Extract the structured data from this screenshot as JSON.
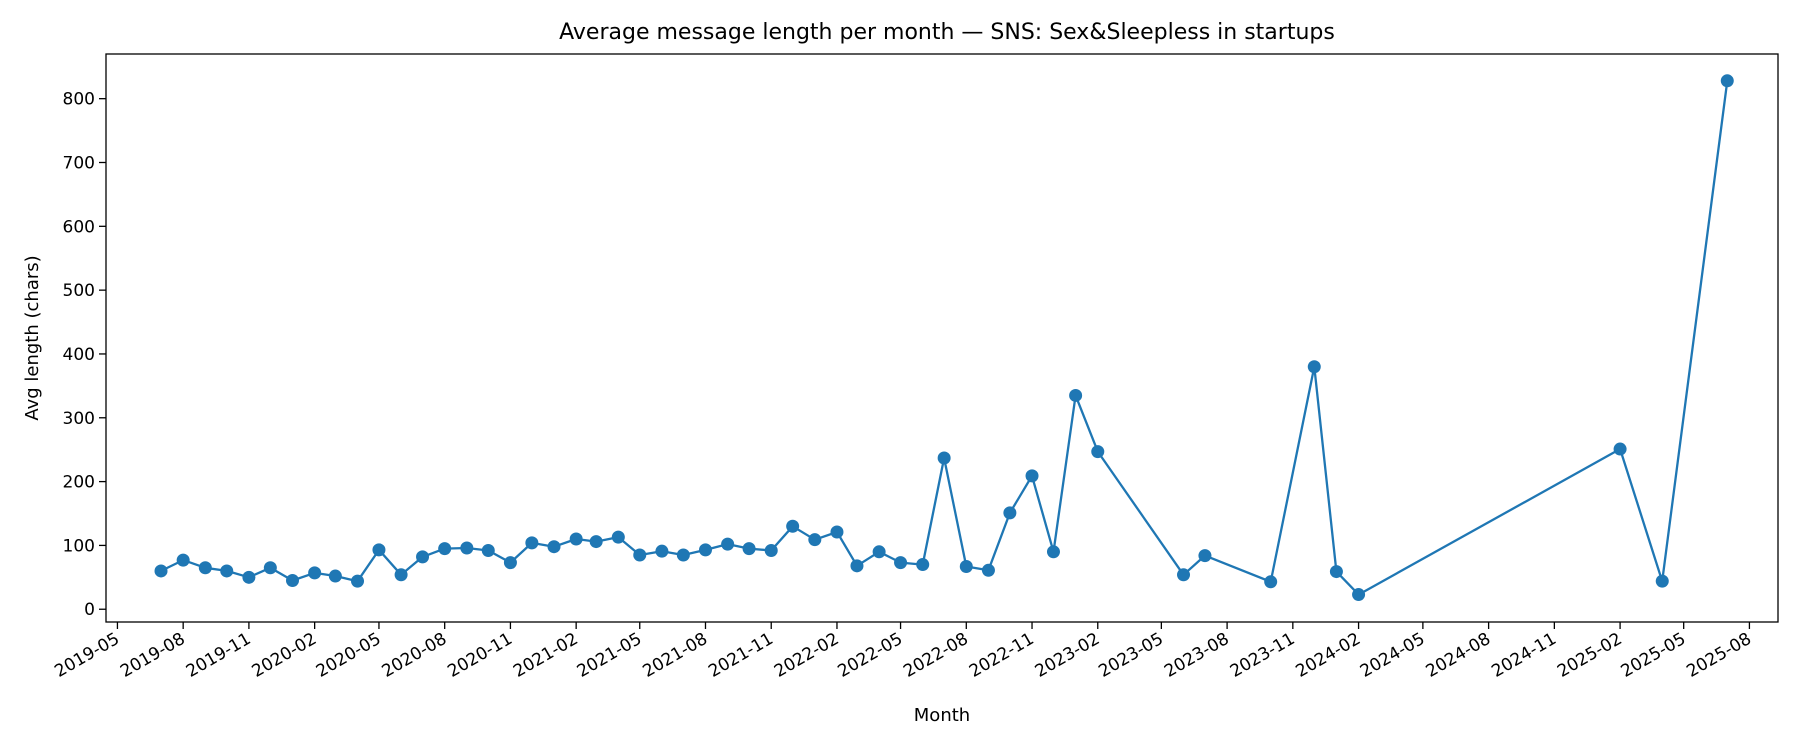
{
  "chart_data": {
    "type": "line",
    "title": "Average message length per month — SNS: Sex&Sleepless in startups",
    "xlabel": "Month",
    "ylabel": "Avg length (chars)",
    "x_axis": "date",
    "xlim": [
      "2019-04-15",
      "2025-09-10"
    ],
    "ylim": [
      -20,
      870
    ],
    "x_ticks": [
      "2019-05",
      "2019-08",
      "2019-11",
      "2020-02",
      "2020-05",
      "2020-08",
      "2020-11",
      "2021-02",
      "2021-05",
      "2021-08",
      "2021-11",
      "2022-02",
      "2022-05",
      "2022-08",
      "2022-11",
      "2023-02",
      "2023-05",
      "2023-08",
      "2023-11",
      "2024-02",
      "2024-05",
      "2024-08",
      "2024-11",
      "2025-02",
      "2025-05",
      "2025-08"
    ],
    "y_ticks": [
      0,
      100,
      200,
      300,
      400,
      500,
      600,
      700,
      800
    ],
    "grid": false,
    "color": "#1f77b4",
    "series": [
      {
        "name": "",
        "points": [
          [
            "2019-07",
            60
          ],
          [
            "2019-08",
            77
          ],
          [
            "2019-09",
            65
          ],
          [
            "2019-10",
            60
          ],
          [
            "2019-11",
            50
          ],
          [
            "2019-12",
            65
          ],
          [
            "2020-01",
            45
          ],
          [
            "2020-02",
            57
          ],
          [
            "2020-03",
            52
          ],
          [
            "2020-04",
            44
          ],
          [
            "2020-05",
            93
          ],
          [
            "2020-06",
            54
          ],
          [
            "2020-07",
            82
          ],
          [
            "2020-08",
            95
          ],
          [
            "2020-09",
            96
          ],
          [
            "2020-10",
            92
          ],
          [
            "2020-11",
            73
          ],
          [
            "2020-12",
            104
          ],
          [
            "2021-01",
            98
          ],
          [
            "2021-02",
            110
          ],
          [
            "2021-03",
            106
          ],
          [
            "2021-04",
            113
          ],
          [
            "2021-05",
            85
          ],
          [
            "2021-06",
            91
          ],
          [
            "2021-07",
            85
          ],
          [
            "2021-08",
            93
          ],
          [
            "2021-09",
            102
          ],
          [
            "2021-10",
            95
          ],
          [
            "2021-11",
            92
          ],
          [
            "2021-12",
            130
          ],
          [
            "2022-01",
            109
          ],
          [
            "2022-02",
            121
          ],
          [
            "2022-03",
            68
          ],
          [
            "2022-04",
            90
          ],
          [
            "2022-05",
            73
          ],
          [
            "2022-06",
            70
          ],
          [
            "2022-07",
            237
          ],
          [
            "2022-08",
            67
          ],
          [
            "2022-09",
            61
          ],
          [
            "2022-10",
            151
          ],
          [
            "2022-11",
            209
          ],
          [
            "2022-12",
            90
          ],
          [
            "2023-01",
            335
          ],
          [
            "2023-02",
            247
          ],
          [
            "2023-06",
            54
          ],
          [
            "2023-07",
            84
          ],
          [
            "2023-10",
            43
          ],
          [
            "2023-12",
            380
          ],
          [
            "2024-01",
            59
          ],
          [
            "2024-02",
            23
          ],
          [
            "2025-02",
            251
          ],
          [
            "2025-04",
            44
          ],
          [
            "2025-07",
            828
          ]
        ]
      }
    ]
  }
}
